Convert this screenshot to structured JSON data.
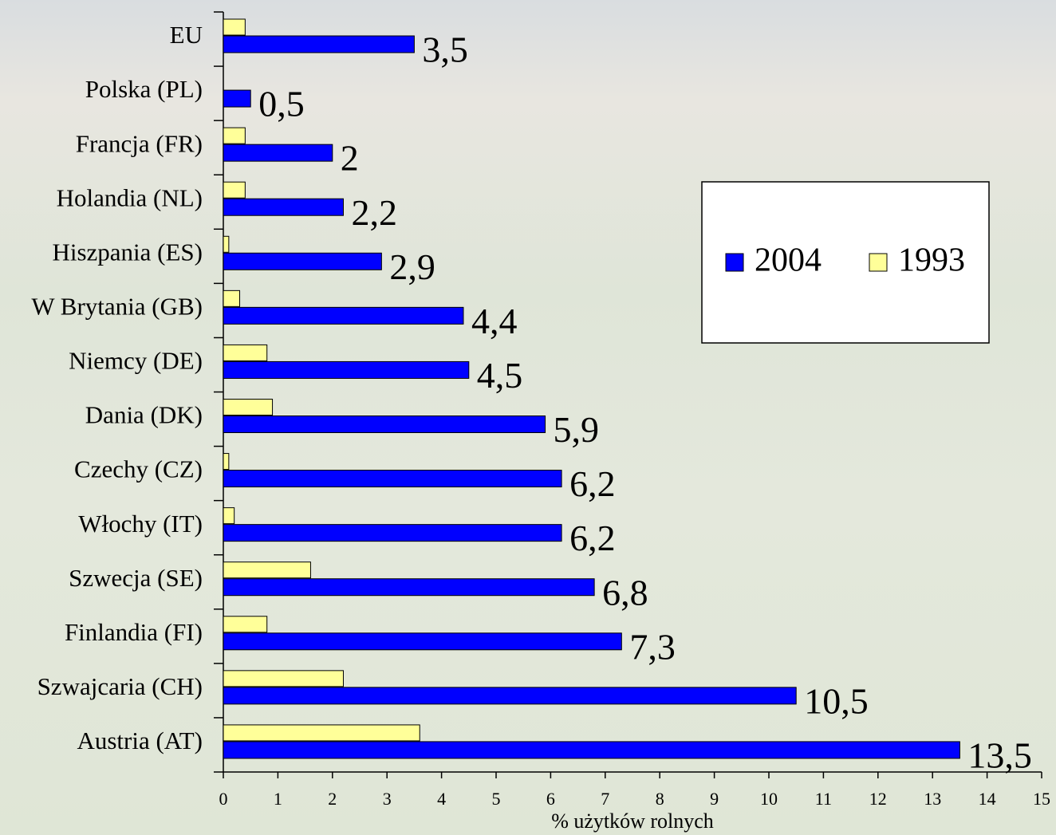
{
  "chart_data": {
    "type": "hbar",
    "x_label": "% użytków rolnych",
    "categories": [
      "EU",
      "Polska (PL)",
      "Francja (FR)",
      "Holandia (NL)",
      "Hiszpania (ES)",
      "W Brytania (GB)",
      "Niemcy (DE)",
      "Dania (DK)",
      "Czechy (CZ)",
      "Włochy (IT)",
      "Szwecja (SE)",
      "Finlandia (FI)",
      "Szwajcaria (CH)",
      "Austria (AT)"
    ],
    "series": [
      {
        "name": "2004",
        "color": "#0000ff",
        "values": [
          3.5,
          0.5,
          2,
          2.2,
          2.9,
          4.4,
          4.5,
          5.9,
          6.2,
          6.2,
          6.8,
          7.3,
          10.5,
          13.5
        ],
        "value_labels": [
          "3,5",
          "0,5",
          "2",
          "2,2",
          "2,9",
          "4,4",
          "4,5",
          "5,9",
          "6,2",
          "6,2",
          "6,8",
          "7,3",
          "10,5",
          "13,5"
        ]
      },
      {
        "name": "1993",
        "color": "#ffff99",
        "values": [
          0.4,
          null,
          0.4,
          0.4,
          0.1,
          0.3,
          0.8,
          0.9,
          0.1,
          0.2,
          1.6,
          0.8,
          2.2,
          3.6
        ]
      }
    ],
    "xlim": [
      0,
      15
    ],
    "xticks": [
      0,
      1,
      2,
      3,
      4,
      5,
      6,
      7,
      8,
      9,
      10,
      11,
      12,
      13,
      14,
      15
    ]
  }
}
